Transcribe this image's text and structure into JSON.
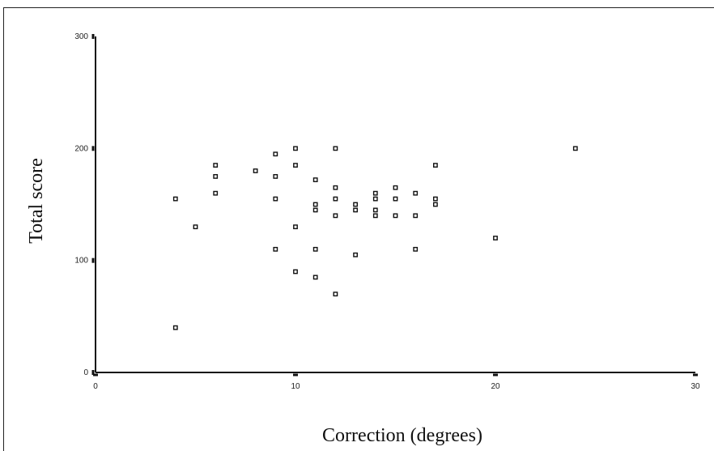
{
  "chart_data": {
    "type": "scatter",
    "title": "",
    "xlabel": "Correction (degrees)",
    "ylabel": "Total score",
    "xlim": [
      0,
      30
    ],
    "ylim": [
      0,
      300
    ],
    "x_ticks": [
      "0",
      "10",
      "20",
      "30"
    ],
    "y_ticks": [
      "0",
      "100",
      "200",
      "300"
    ],
    "grid": false,
    "legend": "none",
    "points": [
      {
        "x": 4,
        "y": 155
      },
      {
        "x": 4,
        "y": 40
      },
      {
        "x": 5,
        "y": 130
      },
      {
        "x": 6,
        "y": 185
      },
      {
        "x": 6,
        "y": 175
      },
      {
        "x": 6,
        "y": 160
      },
      {
        "x": 8,
        "y": 180
      },
      {
        "x": 9,
        "y": 195
      },
      {
        "x": 9,
        "y": 175
      },
      {
        "x": 9,
        "y": 155
      },
      {
        "x": 9,
        "y": 110
      },
      {
        "x": 10,
        "y": 200
      },
      {
        "x": 10,
        "y": 185
      },
      {
        "x": 10,
        "y": 130
      },
      {
        "x": 10,
        "y": 90
      },
      {
        "x": 11,
        "y": 172
      },
      {
        "x": 11,
        "y": 150
      },
      {
        "x": 11,
        "y": 145
      },
      {
        "x": 11,
        "y": 110
      },
      {
        "x": 11,
        "y": 85
      },
      {
        "x": 12,
        "y": 200
      },
      {
        "x": 12,
        "y": 165
      },
      {
        "x": 12,
        "y": 155
      },
      {
        "x": 12,
        "y": 140
      },
      {
        "x": 12,
        "y": 70
      },
      {
        "x": 13,
        "y": 150
      },
      {
        "x": 13,
        "y": 145
      },
      {
        "x": 13,
        "y": 105
      },
      {
        "x": 14,
        "y": 160
      },
      {
        "x": 14,
        "y": 155
      },
      {
        "x": 14,
        "y": 145
      },
      {
        "x": 14,
        "y": 140
      },
      {
        "x": 15,
        "y": 165
      },
      {
        "x": 15,
        "y": 155
      },
      {
        "x": 15,
        "y": 140
      },
      {
        "x": 16,
        "y": 160
      },
      {
        "x": 16,
        "y": 140
      },
      {
        "x": 16,
        "y": 110
      },
      {
        "x": 17,
        "y": 185
      },
      {
        "x": 17,
        "y": 155
      },
      {
        "x": 17,
        "y": 150
      },
      {
        "x": 20,
        "y": 120
      },
      {
        "x": 24,
        "y": 200
      }
    ]
  }
}
